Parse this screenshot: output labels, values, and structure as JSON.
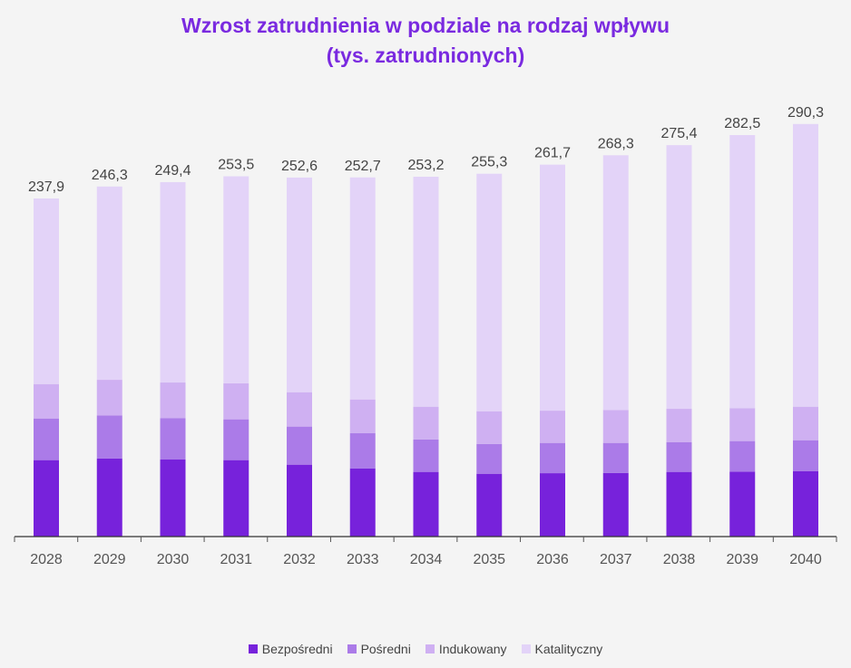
{
  "chart_data": {
    "type": "bar",
    "stacked": true,
    "title": "Wzrost zatrudnienia w podziale na rodzaj wpływu",
    "subtitle": "(tys. zatrudnionych)",
    "categories": [
      "2028",
      "2029",
      "2030",
      "2031",
      "2032",
      "2033",
      "2034",
      "2035",
      "2036",
      "2037",
      "2038",
      "2039",
      "2040"
    ],
    "totals": [
      "237,9",
      "246,3",
      "249,4",
      "253,5",
      "252,6",
      "252,7",
      "253,2",
      "255,3",
      "261,7",
      "268,3",
      "275,4",
      "282,5",
      "290,3"
    ],
    "series": [
      {
        "name": "Bezpośredni",
        "color": "#7722db",
        "values": [
          53.8,
          55.0,
          54.2,
          53.8,
          50.6,
          48.0,
          45.5,
          44.2,
          44.6,
          44.8,
          45.5,
          45.7,
          46.1
        ]
      },
      {
        "name": "Pośredni",
        "color": "#ab7be8",
        "values": [
          29.3,
          30.3,
          29.2,
          28.7,
          26.8,
          24.7,
          22.9,
          21.0,
          21.3,
          21.1,
          21.0,
          21.5,
          21.7
        ]
      },
      {
        "name": "Indukowany",
        "color": "#cfb0f2",
        "values": [
          24.2,
          25.0,
          25.0,
          25.3,
          24.2,
          23.8,
          23.0,
          23.0,
          22.7,
          23.2,
          23.4,
          23.2,
          23.6
        ]
      },
      {
        "name": "Katalityczny",
        "color": "#e3d3f8",
        "values": [
          130.6,
          136.0,
          141.0,
          145.7,
          151.0,
          156.2,
          161.8,
          167.1,
          173.1,
          179.2,
          185.5,
          192.1,
          198.9
        ]
      }
    ],
    "ylim": [
      0,
      300
    ],
    "grid": false,
    "legend": "bottom"
  }
}
